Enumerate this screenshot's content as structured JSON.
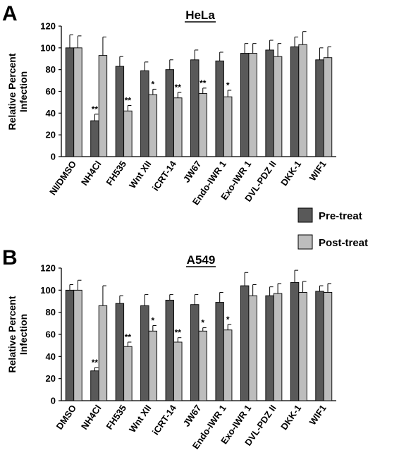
{
  "legend": {
    "pre_label": "Pre-treat",
    "post_label": "Post-treat"
  },
  "colors": {
    "pre": "#595959",
    "post": "#bdbdbd",
    "axis": "#000000"
  },
  "chart_data": [
    {
      "type": "bar",
      "panel": "A",
      "title": "HeLa",
      "ylabel": "Relative Percent Infection",
      "ylim": [
        0,
        120
      ],
      "yticks": [
        0,
        20,
        40,
        60,
        80,
        100,
        120
      ],
      "categories": [
        "NI/DMSO",
        "NH4Cl",
        "FH535",
        "Wnt XII",
        "iCRT-14",
        "JW67",
        "Endo-IWR 1",
        "Exo-IWR 1",
        "DVL-PDZ II",
        "DKK-1",
        "WIF1"
      ],
      "series": [
        {
          "name": "Pre-treat",
          "values": [
            100,
            33,
            83,
            79,
            80,
            89,
            88,
            95,
            98,
            101,
            89
          ],
          "errors": [
            12,
            6,
            9,
            8,
            9,
            9,
            8,
            9,
            9,
            9,
            11
          ]
        },
        {
          "name": "Post-treat",
          "values": [
            100,
            93,
            42,
            57,
            54,
            58,
            55,
            95,
            92,
            103,
            91
          ],
          "errors": [
            11,
            17,
            5,
            5,
            5,
            5,
            6,
            9,
            12,
            12,
            10
          ]
        }
      ],
      "annotations": [
        {
          "category": "NH4Cl",
          "series": "Pre-treat",
          "text": "**"
        },
        {
          "category": "FH535",
          "series": "Post-treat",
          "text": "**"
        },
        {
          "category": "Wnt XII",
          "series": "Post-treat",
          "text": "*"
        },
        {
          "category": "iCRT-14",
          "series": "Post-treat",
          "text": "**"
        },
        {
          "category": "JW67",
          "series": "Post-treat",
          "text": "**"
        },
        {
          "category": "Endo-IWR 1",
          "series": "Post-treat",
          "text": "*"
        }
      ]
    },
    {
      "type": "bar",
      "panel": "B",
      "title": "A549",
      "ylabel": "Relative Percent Infection",
      "ylim": [
        0,
        120
      ],
      "yticks": [
        0,
        20,
        40,
        60,
        80,
        100,
        120
      ],
      "categories": [
        "DMSO",
        "NH4Cl",
        "FH535",
        "Wnt XII",
        "iCRT-14",
        "JW67",
        "Endo-IWR 1",
        "Exo-IWR 1",
        "DVL-PDZ II",
        "DKK-1",
        "WIF1"
      ],
      "series": [
        {
          "name": "Pre-treat",
          "values": [
            100,
            27,
            88,
            86,
            91,
            87,
            89,
            104,
            95,
            107,
            99
          ],
          "errors": [
            5,
            3,
            7,
            10,
            5,
            9,
            9,
            12,
            8,
            11,
            5
          ]
        },
        {
          "name": "Post-treat",
          "values": [
            100,
            86,
            49,
            63,
            53,
            63,
            64,
            95,
            97,
            98,
            98
          ],
          "errors": [
            9,
            18,
            4,
            5,
            4,
            3,
            5,
            10,
            9,
            10,
            8
          ]
        }
      ],
      "annotations": [
        {
          "category": "NH4Cl",
          "series": "Pre-treat",
          "text": "**"
        },
        {
          "category": "FH535",
          "series": "Post-treat",
          "text": "**"
        },
        {
          "category": "Wnt XII",
          "series": "Post-treat",
          "text": "*"
        },
        {
          "category": "iCRT-14",
          "series": "Post-treat",
          "text": "**"
        },
        {
          "category": "JW67",
          "series": "Post-treat",
          "text": "*"
        },
        {
          "category": "Endo-IWR 1",
          "series": "Post-treat",
          "text": "*"
        }
      ]
    }
  ]
}
